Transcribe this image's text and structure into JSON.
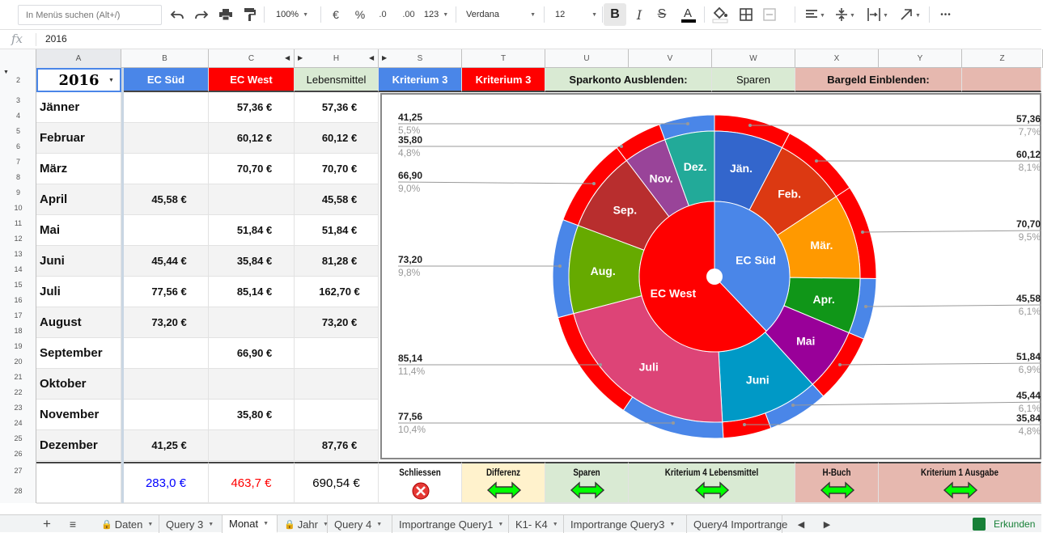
{
  "toolbar": {
    "search_placeholder": "In Menüs suchen (Alt+/)",
    "zoom": "100%",
    "currency": "€",
    "percent": "%",
    "dec_less": ".0",
    "dec_more": ".00",
    "number_format": "123",
    "font": "Verdana",
    "font_size": "12",
    "more": "•••"
  },
  "formula": {
    "fx": "fx",
    "value": "2016"
  },
  "columns": [
    "A",
    "B",
    "C",
    "H",
    "S",
    "T",
    "U",
    "V",
    "W",
    "X",
    "Y",
    "Z"
  ],
  "rows": [
    "2",
    "3",
    "4",
    "5",
    "6",
    "7",
    "8",
    "9",
    "10",
    "11",
    "12",
    "13",
    "14",
    "15",
    "16",
    "17",
    "18",
    "19",
    "20",
    "21",
    "22",
    "23",
    "24",
    "25",
    "26",
    "27",
    "28"
  ],
  "header": {
    "year": "2016",
    "ec_sued": "EC Süd",
    "ec_west": "EC West",
    "lebensmittel": "Lebensmittel",
    "kriterium3_s": "Kriterium 3",
    "kriterium3_t": "Kriterium 3",
    "sparkonto": "Sparkonto Ausblenden:",
    "sparen": "Sparen",
    "bargeld": "Bargeld Einblenden:"
  },
  "table": [
    {
      "month": "Jänner",
      "ec_sued": "",
      "ec_west": "57,36 €",
      "lebensmittel": "57,36 €"
    },
    {
      "month": "Februar",
      "ec_sued": "",
      "ec_west": "60,12 €",
      "lebensmittel": "60,12 €"
    },
    {
      "month": "März",
      "ec_sued": "",
      "ec_west": "70,70 €",
      "lebensmittel": "70,70 €"
    },
    {
      "month": "April",
      "ec_sued": "45,58 €",
      "ec_west": "",
      "lebensmittel": "45,58 €"
    },
    {
      "month": "Mai",
      "ec_sued": "",
      "ec_west": "51,84 €",
      "lebensmittel": "51,84 €"
    },
    {
      "month": "Juni",
      "ec_sued": "45,44 €",
      "ec_west": "35,84 €",
      "lebensmittel": "81,28 €"
    },
    {
      "month": "Juli",
      "ec_sued": "77,56 €",
      "ec_west": "85,14 €",
      "lebensmittel": "162,70 €"
    },
    {
      "month": "August",
      "ec_sued": "73,20 €",
      "ec_west": "",
      "lebensmittel": "73,20 €"
    },
    {
      "month": "September",
      "ec_sued": "",
      "ec_west": "66,90 €",
      "lebensmittel": ""
    },
    {
      "month": "Oktober",
      "ec_sued": "",
      "ec_west": "",
      "lebensmittel": ""
    },
    {
      "month": "November",
      "ec_sued": "",
      "ec_west": "35,80 €",
      "lebensmittel": ""
    },
    {
      "month": "Dezember",
      "ec_sued": "41,25 €",
      "ec_west": "",
      "lebensmittel": "87,76 €"
    }
  ],
  "totals": {
    "ec_sued": "283,0 €",
    "ec_west": "463,7 €",
    "lebensmittel": "690,54 €"
  },
  "buttons": {
    "schliessen": "Schliessen",
    "differenz": "Differenz",
    "sparen": "Sparen",
    "kriterium4": "Kriterium 4  Lebensmittel",
    "hbuch": "H-Buch",
    "kriterium1": "Kriterium 1  Ausgabe"
  },
  "colors": {
    "ec_sued": "#4a86e8",
    "ec_west": "#ff0000",
    "lebensmittel_bg": "#d9ead3",
    "green_btn": "#00ff00",
    "red_btn": "#e53935"
  },
  "chart_data": {
    "type": "pie",
    "inner": [
      {
        "label": "EC Süd",
        "value": 283.03,
        "color": "#4a86e8"
      },
      {
        "label": "EC West",
        "value": 463.7,
        "color": "#ff0000"
      }
    ],
    "middle": [
      {
        "label": "Jän.",
        "value": 57.36,
        "color": "#3366cc"
      },
      {
        "label": "Feb.",
        "value": 60.12,
        "color": "#dc3912"
      },
      {
        "label": "Mär.",
        "value": 70.7,
        "color": "#ff9900"
      },
      {
        "label": "Apr.",
        "value": 45.58,
        "color": "#109618"
      },
      {
        "label": "Mai",
        "value": 51.84,
        "color": "#990099"
      },
      {
        "label": "Juni",
        "value": 81.28,
        "color": "#0099c6"
      },
      {
        "label": "Juli",
        "value": 162.7,
        "color": "#dd4477"
      },
      {
        "label": "Aug.",
        "value": 73.2,
        "color": "#66aa00"
      },
      {
        "label": "Sep.",
        "value": 66.9,
        "color": "#b82e2e"
      },
      {
        "label": "Nov.",
        "value": 35.8,
        "color": "#994499"
      },
      {
        "label": "Dez.",
        "value": 41.25,
        "color": "#22aa99"
      }
    ],
    "outer": [
      {
        "value": 57.36,
        "percent": "7,7%",
        "color": "#ff0000"
      },
      {
        "value": 60.12,
        "percent": "8,1%",
        "color": "#ff0000"
      },
      {
        "value": 70.7,
        "percent": "9,5%",
        "color": "#ff0000"
      },
      {
        "value": 45.58,
        "percent": "6,1%",
        "color": "#4a86e8"
      },
      {
        "value": 51.84,
        "percent": "6,9%",
        "color": "#ff0000"
      },
      {
        "value": 45.44,
        "percent": "6,1%",
        "color": "#4a86e8"
      },
      {
        "value": 35.84,
        "percent": "4,8%",
        "color": "#ff0000"
      },
      {
        "value": 77.56,
        "percent": "10,4%",
        "color": "#4a86e8"
      },
      {
        "value": 85.14,
        "percent": "11,4%",
        "color": "#ff0000"
      },
      {
        "value": 73.2,
        "percent": "9,8%",
        "color": "#4a86e8"
      },
      {
        "value": 66.9,
        "percent": "9,0%",
        "color": "#ff0000"
      },
      {
        "value": 35.8,
        "percent": "4,8%",
        "color": "#ff0000"
      },
      {
        "value": 41.25,
        "percent": "5,5%",
        "color": "#4a86e8"
      }
    ],
    "callouts_right": [
      {
        "value": "57,36",
        "percent": "7,7%"
      },
      {
        "value": "60,12",
        "percent": "8,1%"
      },
      {
        "value": "70,70",
        "percent": "9,5%"
      },
      {
        "value": "45,58",
        "percent": "6,1%"
      },
      {
        "value": "51,84",
        "percent": "6,9%"
      },
      {
        "value": "45,44",
        "percent": "6,1%"
      },
      {
        "value": "35,84",
        "percent": "4,8%"
      }
    ],
    "callouts_left": [
      {
        "value": "41,25",
        "percent": "5,5%"
      },
      {
        "value": "35,80",
        "percent": "4,8%"
      },
      {
        "value": "66,90",
        "percent": "9,0%"
      },
      {
        "value": "73,20",
        "percent": "9,8%"
      },
      {
        "value": "85,14",
        "percent": "11,4%"
      },
      {
        "value": "77,56",
        "percent": "10,4%"
      }
    ]
  },
  "tabs": [
    "Daten",
    "Query 3",
    "Monat",
    "Jahr",
    "Query 4",
    "Importrange Query1",
    "K1- K4",
    "Importrange Query3",
    "Query4 Importrange"
  ],
  "explore_label": "Erkunden"
}
